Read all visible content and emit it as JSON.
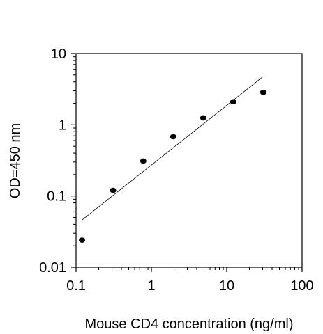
{
  "chart_data": {
    "type": "scatter",
    "xlabel": "Mouse CD4 concentration (ng/ml)",
    "ylabel": "OD=450 nm",
    "xscale": "log",
    "yscale": "log",
    "xlim": [
      0.1,
      100
    ],
    "ylim": [
      0.01,
      10
    ],
    "xticks": [
      "0.1",
      "1",
      "10",
      "100"
    ],
    "yticks": [
      "0.01",
      "0.1",
      "1",
      "10"
    ],
    "grid": false,
    "legend": "none",
    "series": [
      {
        "x": [
          0.12,
          0.31,
          0.78,
          1.95,
          4.88,
          12.2,
          30.5
        ],
        "y": [
          0.024,
          0.12,
          0.31,
          0.68,
          1.25,
          2.1,
          2.85
        ]
      }
    ],
    "fit_line": {
      "x": [
        0.12,
        30
      ],
      "y": [
        0.046,
        4.7
      ]
    }
  }
}
